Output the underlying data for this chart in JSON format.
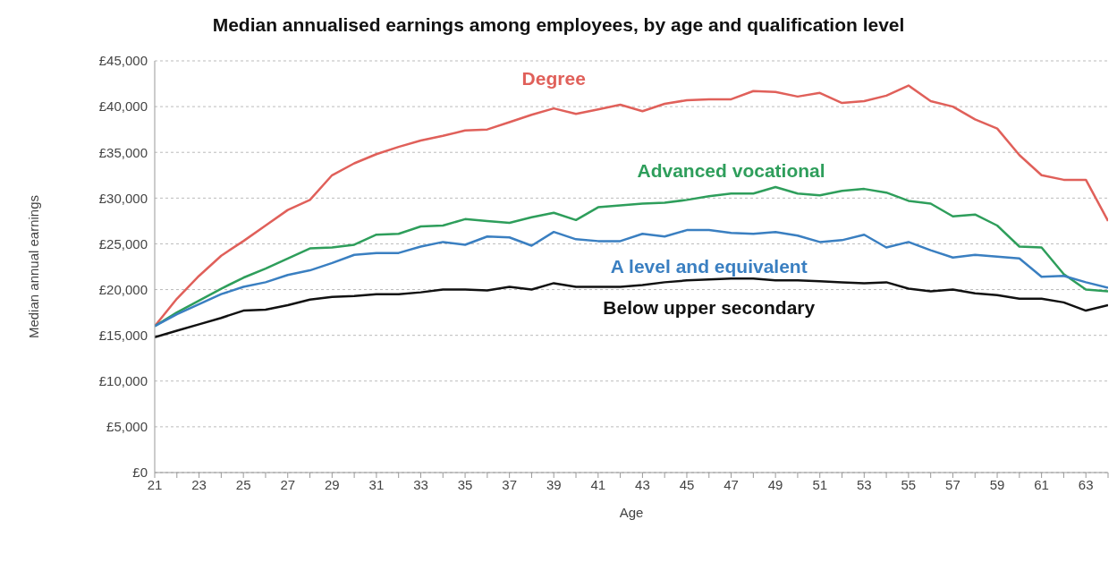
{
  "chart_data": {
    "type": "line",
    "title": "Median annualised earnings among employees, by age and qualification level",
    "xlabel": "Age",
    "ylabel": "Median annual earnings",
    "x": [
      21,
      22,
      23,
      24,
      25,
      26,
      27,
      28,
      29,
      30,
      31,
      32,
      33,
      34,
      35,
      36,
      37,
      38,
      39,
      40,
      41,
      42,
      43,
      44,
      45,
      46,
      47,
      48,
      49,
      50,
      51,
      52,
      53,
      54,
      55,
      56,
      57,
      58,
      59,
      60,
      61,
      62,
      63,
      64
    ],
    "series": [
      {
        "name": "Degree",
        "color": "#e0605a",
        "values": [
          16000,
          19000,
          21500,
          23700,
          25300,
          27000,
          28700,
          29800,
          32500,
          33800,
          34800,
          35600,
          36300,
          36800,
          37400,
          37500,
          38300,
          39100,
          39800,
          39200,
          39700,
          40200,
          39500,
          40300,
          40700,
          40800,
          40800,
          41700,
          41600,
          41100,
          41500,
          40400,
          40600,
          41200,
          42300,
          40600,
          40000,
          38600,
          37600,
          34700,
          32500,
          32000,
          32000,
          27500
        ]
      },
      {
        "name": "Advanced vocational",
        "color": "#2e9e5b",
        "values": [
          16000,
          17500,
          18800,
          20100,
          21300,
          22300,
          23400,
          24500,
          24600,
          24900,
          26000,
          26100,
          26900,
          27000,
          27700,
          27500,
          27300,
          27900,
          28400,
          27600,
          29000,
          29200,
          29400,
          29500,
          29800,
          30200,
          30500,
          30500,
          31200,
          30500,
          30300,
          30800,
          31000,
          30600,
          29700,
          29400,
          28000,
          28200,
          27000,
          24700,
          24600,
          21700,
          20000,
          19800
        ]
      },
      {
        "name": "A level and equivalent",
        "color": "#3a7fc1",
        "values": [
          16000,
          17300,
          18400,
          19500,
          20300,
          20800,
          21600,
          22100,
          22900,
          23800,
          24000,
          24000,
          24700,
          25200,
          24900,
          25800,
          25700,
          24800,
          26300,
          25500,
          25300,
          25300,
          26100,
          25800,
          26500,
          26500,
          26200,
          26100,
          26300,
          25900,
          25200,
          25400,
          26000,
          24600,
          25200,
          24300,
          23500,
          23800,
          23600,
          23400,
          21400,
          21500,
          20800,
          20200
        ]
      },
      {
        "name": "Below upper secondary",
        "color": "#111111",
        "values": [
          14800,
          15500,
          16200,
          16900,
          17700,
          17800,
          18300,
          18900,
          19200,
          19300,
          19500,
          19500,
          19700,
          20000,
          20000,
          19900,
          20300,
          20000,
          20700,
          20300,
          20300,
          20300,
          20500,
          20800,
          21000,
          21100,
          21200,
          21200,
          21000,
          21000,
          20900,
          20800,
          20700,
          20800,
          20100,
          19800,
          20000,
          19600,
          19400,
          19000,
          19000,
          18600,
          17700,
          18300
        ]
      }
    ],
    "xlim": [
      21,
      64
    ],
    "xticks": [
      21,
      {
        "value": 22,
        "label": null
      },
      23,
      {
        "value": 24,
        "label": null
      },
      25,
      {
        "value": 26,
        "label": null
      },
      27,
      {
        "value": 28,
        "label": null
      },
      29,
      {
        "value": 30,
        "label": null
      },
      31,
      {
        "value": 32,
        "label": null
      },
      33,
      {
        "value": 34,
        "label": null
      },
      35,
      {
        "value": 36,
        "label": null
      },
      37,
      {
        "value": 38,
        "label": null
      },
      39,
      {
        "value": 40,
        "label": null
      },
      41,
      {
        "value": 42,
        "label": null
      },
      43,
      {
        "value": 44,
        "label": null
      },
      45,
      {
        "value": 46,
        "label": null
      },
      47,
      {
        "value": 48,
        "label": null
      },
      49,
      {
        "value": 50,
        "label": null
      },
      51,
      {
        "value": 52,
        "label": null
      },
      53,
      {
        "value": 54,
        "label": null
      },
      55,
      {
        "value": 56,
        "label": null
      },
      57,
      {
        "value": 58,
        "label": null
      },
      59,
      {
        "value": 60,
        "label": null
      },
      61,
      {
        "value": 62,
        "label": null
      },
      63,
      {
        "value": 64,
        "label": null
      }
    ],
    "ylim": [
      0,
      45000
    ],
    "yticks": [
      {
        "value": 0,
        "label": "£0"
      },
      {
        "value": 5000,
        "label": "£5,000"
      },
      {
        "value": 10000,
        "label": "£10,000"
      },
      {
        "value": 15000,
        "label": "£15,000"
      },
      {
        "value": 20000,
        "label": "£20,000"
      },
      {
        "value": 25000,
        "label": "£25,000"
      },
      {
        "value": 30000,
        "label": "£30,000"
      },
      {
        "value": 35000,
        "label": "£35,000"
      },
      {
        "value": 40000,
        "label": "£40,000"
      },
      {
        "value": 45000,
        "label": "£45,000"
      }
    ],
    "grid": "y",
    "marker": "none",
    "line_style": "solid"
  }
}
